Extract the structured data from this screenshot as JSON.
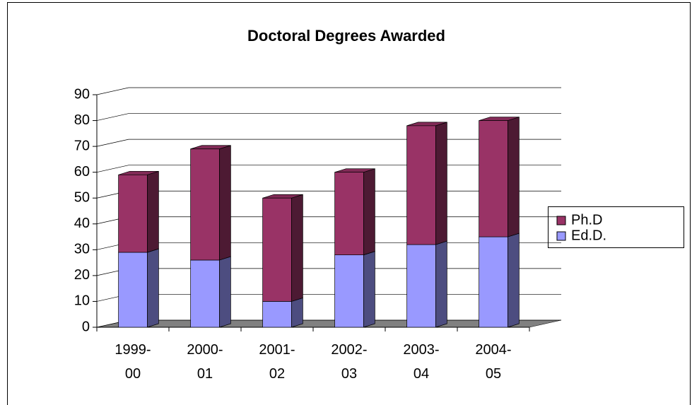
{
  "chart_data": {
    "type": "bar3d_stacked",
    "title": "Doctoral Degrees Awarded",
    "categories": [
      "1999-00",
      "2000-01",
      "2001-02",
      "2002-03",
      "2003-04",
      "2004-05"
    ],
    "series": [
      {
        "name": "Ed.D.",
        "color": "#9999ff",
        "values": [
          29,
          26,
          10,
          28,
          32,
          35
        ]
      },
      {
        "name": "Ph.D",
        "color": "#993366",
        "values": [
          30,
          43,
          40,
          32,
          46,
          45
        ]
      }
    ],
    "ylim": [
      0,
      90
    ],
    "yticks": [
      0,
      10,
      20,
      30,
      40,
      50,
      60,
      70,
      80,
      90
    ],
    "grid": true,
    "legend": "right"
  }
}
